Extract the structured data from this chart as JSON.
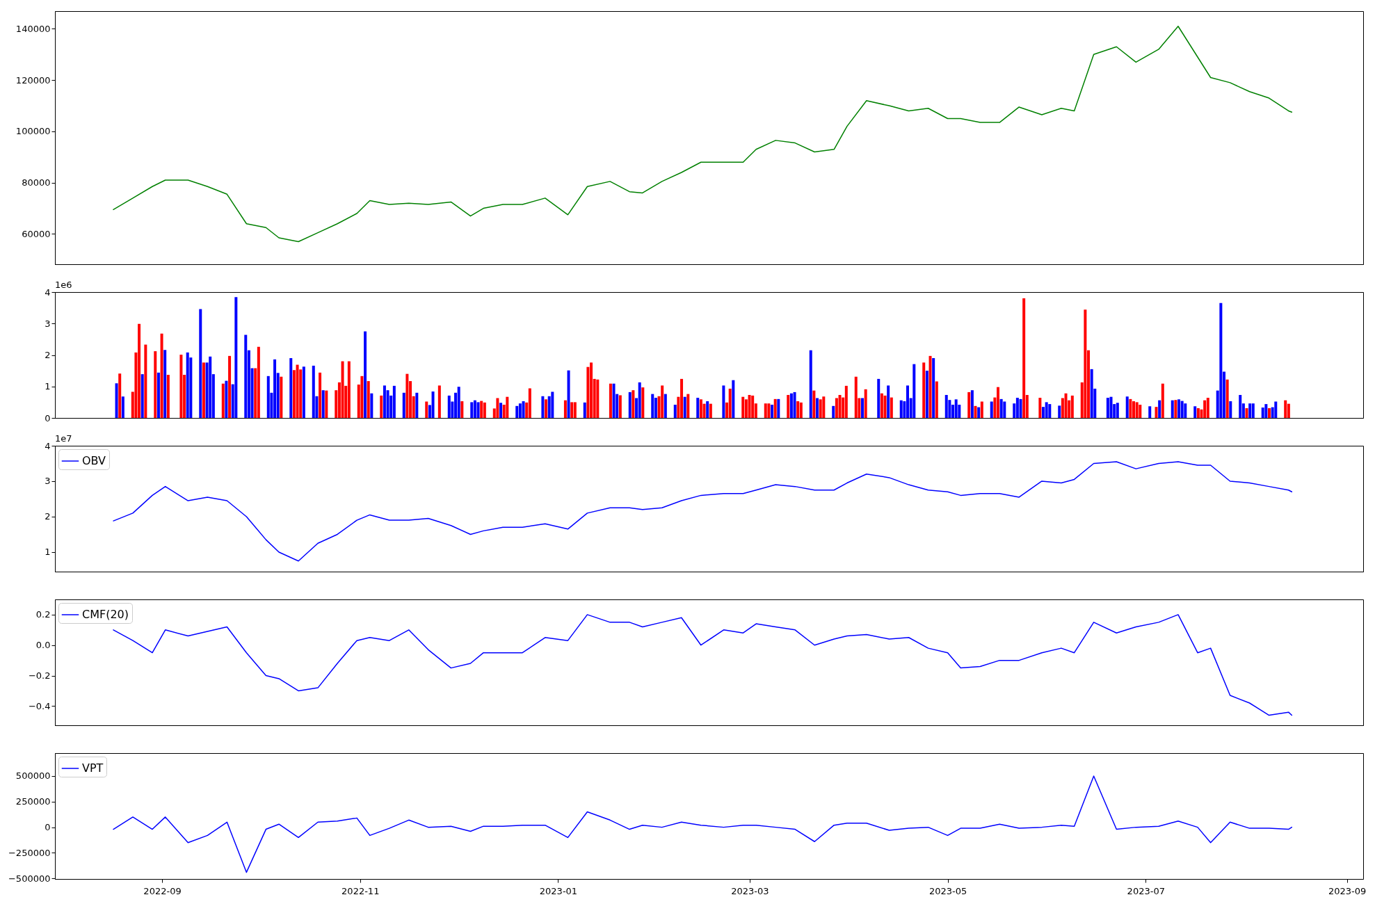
{
  "chart_data": [
    {
      "type": "line",
      "x": [
        "2022-08-17",
        "2022-08-23",
        "2022-08-29",
        "2022-09-02",
        "2022-09-09",
        "2022-09-15",
        "2022-09-21",
        "2022-09-27",
        "2022-10-03",
        "2022-10-07",
        "2022-10-13",
        "2022-10-19",
        "2022-10-25",
        "2022-10-31",
        "2022-11-04",
        "2022-11-10",
        "2022-11-16",
        "2022-11-22",
        "2022-11-29",
        "2022-12-05",
        "2022-12-09",
        "2022-12-15",
        "2022-12-21",
        "2022-12-28",
        "2023-01-04",
        "2023-01-10",
        "2023-01-17",
        "2023-01-23",
        "2023-01-27",
        "2023-02-02",
        "2023-02-08",
        "2023-02-14",
        "2023-02-21",
        "2023-02-27",
        "2023-03-03",
        "2023-03-09",
        "2023-03-15",
        "2023-03-21",
        "2023-03-27",
        "2023-03-31",
        "2023-04-06",
        "2023-04-13",
        "2023-04-19",
        "2023-04-25",
        "2023-05-01",
        "2023-05-05",
        "2023-05-11",
        "2023-05-17",
        "2023-05-23",
        "2023-05-30",
        "2023-06-05",
        "2023-06-09",
        "2023-06-15",
        "2023-06-22",
        "2023-06-28",
        "2023-07-05",
        "2023-07-11",
        "2023-07-17",
        "2023-07-21",
        "2023-07-27",
        "2023-08-02",
        "2023-08-08",
        "2023-08-14",
        "2023-08-15"
      ],
      "series": [
        {
          "color": "#008000",
          "values": [
            69500,
            74000,
            78500,
            81000,
            81000,
            78500,
            75500,
            64000,
            62500,
            58500,
            57000,
            60500,
            64000,
            68000,
            73000,
            71500,
            72000,
            71500,
            72500,
            67000,
            70000,
            71500,
            71500,
            74000,
            67500,
            78500,
            80500,
            76500,
            76000,
            80500,
            84000,
            88000,
            88000,
            88000,
            93000,
            96500,
            95500,
            92000,
            93000,
            102000,
            112000,
            110000,
            108000,
            109000,
            105000,
            105000,
            103500,
            103500,
            109500,
            106500,
            109000,
            108000,
            130000,
            133000,
            127000,
            132000,
            141000,
            129000,
            121000,
            119000,
            115500,
            113000,
            108000,
            107500
          ]
        }
      ],
      "xlim": [
        "2022-07-30",
        "2023-09-06"
      ],
      "ylim": [
        48200,
        146900
      ],
      "yticks": [
        60000,
        80000,
        100000,
        120000,
        140000
      ],
      "tick_labels": "y"
    },
    {
      "type": "bar",
      "x": [
        "2022-08-17",
        "2022-08-18",
        "2022-08-19",
        "2022-08-22",
        "2022-08-23",
        "2022-08-24",
        "2022-08-25",
        "2022-08-26",
        "2022-08-29",
        "2022-08-30",
        "2022-08-31",
        "2022-09-01",
        "2022-09-02",
        "2022-09-06",
        "2022-09-07",
        "2022-09-08",
        "2022-09-09",
        "2022-09-12",
        "2022-09-13",
        "2022-09-14",
        "2022-09-15",
        "2022-09-16",
        "2022-09-19",
        "2022-09-20",
        "2022-09-21",
        "2022-09-22",
        "2022-09-23",
        "2022-09-26",
        "2022-09-27",
        "2022-09-28",
        "2022-09-29",
        "2022-09-30",
        "2022-10-03",
        "2022-10-04",
        "2022-10-05",
        "2022-10-06",
        "2022-10-07",
        "2022-10-10",
        "2022-10-11",
        "2022-10-12",
        "2022-10-13",
        "2022-10-14",
        "2022-10-17",
        "2022-10-18",
        "2022-10-19",
        "2022-10-20",
        "2022-10-21",
        "2022-10-24",
        "2022-10-25",
        "2022-10-26",
        "2022-10-27",
        "2022-10-28",
        "2022-10-31",
        "2022-11-01",
        "2022-11-02",
        "2022-11-03",
        "2022-11-04",
        "2022-11-07",
        "2022-11-08",
        "2022-11-09",
        "2022-11-10",
        "2022-11-11",
        "2022-11-14",
        "2022-11-15",
        "2022-11-16",
        "2022-11-17",
        "2022-11-18",
        "2022-11-21",
        "2022-11-22",
        "2022-11-23",
        "2022-11-25",
        "2022-11-28",
        "2022-11-29",
        "2022-11-30",
        "2022-12-01",
        "2022-12-02",
        "2022-12-05",
        "2022-12-06",
        "2022-12-07",
        "2022-12-08",
        "2022-12-09",
        "2022-12-12",
        "2022-12-13",
        "2022-12-14",
        "2022-12-15",
        "2022-12-16",
        "2022-12-19",
        "2022-12-20",
        "2022-12-21",
        "2022-12-22",
        "2022-12-23",
        "2022-12-27",
        "2022-12-28",
        "2022-12-29",
        "2022-12-30",
        "2023-01-03",
        "2023-01-04",
        "2023-01-05",
        "2023-01-06",
        "2023-01-09",
        "2023-01-10",
        "2023-01-11",
        "2023-01-12",
        "2023-01-13",
        "2023-01-17",
        "2023-01-18",
        "2023-01-19",
        "2023-01-20",
        "2023-01-23",
        "2023-01-24",
        "2023-01-25",
        "2023-01-26",
        "2023-01-27",
        "2023-01-30",
        "2023-01-31",
        "2023-02-01",
        "2023-02-02",
        "2023-02-03",
        "2023-02-06",
        "2023-02-07",
        "2023-02-08",
        "2023-02-09",
        "2023-02-10",
        "2023-02-13",
        "2023-02-14",
        "2023-02-15",
        "2023-02-16",
        "2023-02-17",
        "2023-02-21",
        "2023-02-22",
        "2023-02-23",
        "2023-02-24",
        "2023-02-27",
        "2023-02-28",
        "2023-03-01",
        "2023-03-02",
        "2023-03-03",
        "2023-03-06",
        "2023-03-07",
        "2023-03-08",
        "2023-03-09",
        "2023-03-10",
        "2023-03-13",
        "2023-03-14",
        "2023-03-15",
        "2023-03-16",
        "2023-03-17",
        "2023-03-20",
        "2023-03-21",
        "2023-03-22",
        "2023-03-23",
        "2023-03-24",
        "2023-03-27",
        "2023-03-28",
        "2023-03-29",
        "2023-03-30",
        "2023-03-31",
        "2023-04-03",
        "2023-04-04",
        "2023-04-05",
        "2023-04-06",
        "2023-04-10",
        "2023-04-11",
        "2023-04-12",
        "2023-04-13",
        "2023-04-14",
        "2023-04-17",
        "2023-04-18",
        "2023-04-19",
        "2023-04-20",
        "2023-04-21",
        "2023-04-24",
        "2023-04-25",
        "2023-04-26",
        "2023-04-27",
        "2023-04-28",
        "2023-05-01",
        "2023-05-02",
        "2023-05-03",
        "2023-05-04",
        "2023-05-05",
        "2023-05-08",
        "2023-05-09",
        "2023-05-10",
        "2023-05-11",
        "2023-05-12",
        "2023-05-15",
        "2023-05-16",
        "2023-05-17",
        "2023-05-18",
        "2023-05-19",
        "2023-05-22",
        "2023-05-23",
        "2023-05-24",
        "2023-05-25",
        "2023-05-26",
        "2023-05-30",
        "2023-05-31",
        "2023-06-01",
        "2023-06-02",
        "2023-06-05",
        "2023-06-06",
        "2023-06-07",
        "2023-06-08",
        "2023-06-09",
        "2023-06-12",
        "2023-06-13",
        "2023-06-14",
        "2023-06-15",
        "2023-06-16",
        "2023-06-20",
        "2023-06-21",
        "2023-06-22",
        "2023-06-23",
        "2023-06-26",
        "2023-06-27",
        "2023-06-28",
        "2023-06-29",
        "2023-06-30",
        "2023-07-03",
        "2023-07-05",
        "2023-07-06",
        "2023-07-07",
        "2023-07-10",
        "2023-07-11",
        "2023-07-12",
        "2023-07-13",
        "2023-07-14",
        "2023-07-17",
        "2023-07-18",
        "2023-07-19",
        "2023-07-20",
        "2023-07-21",
        "2023-07-24",
        "2023-07-25",
        "2023-07-26",
        "2023-07-27",
        "2023-07-28",
        "2023-07-31",
        "2023-08-01",
        "2023-08-02",
        "2023-08-03",
        "2023-08-04",
        "2023-08-07",
        "2023-08-08",
        "2023-08-09",
        "2023-08-10",
        "2023-08-11",
        "2023-08-14",
        "2023-08-15"
      ],
      "values": [
        1.1,
        1.41,
        0.68,
        0.83,
        2.08,
        2.99,
        1.39,
        2.33,
        2.12,
        1.44,
        2.68,
        2.16,
        1.37,
        2.01,
        1.37,
        2.08,
        1.92,
        3.46,
        1.76,
        1.76,
        1.95,
        1.39,
        1.09,
        1.18,
        1.97,
        1.07,
        3.84,
        2.64,
        2.15,
        1.58,
        1.58,
        2.26,
        1.33,
        0.8,
        1.86,
        1.43,
        1.31,
        1.9,
        1.52,
        1.69,
        1.54,
        1.63,
        1.66,
        0.69,
        1.44,
        0.88,
        0.87,
        0.88,
        1.13,
        1.8,
        1.02,
        1.8,
        1.06,
        1.33,
        2.75,
        1.17,
        0.78,
        0.71,
        1.03,
        0.88,
        0.71,
        1.02,
        0.8,
        1.4,
        1.17,
        0.69,
        0.8,
        0.52,
        0.41,
        0.84,
        1.03,
        0.71,
        0.52,
        0.8,
        0.99,
        0.53,
        0.5,
        0.56,
        0.5,
        0.54,
        0.49,
        0.3,
        0.63,
        0.48,
        0.42,
        0.67,
        0.38,
        0.46,
        0.53,
        0.49,
        0.94,
        0.69,
        0.59,
        0.69,
        0.83,
        0.56,
        1.51,
        0.5,
        0.5,
        0.49,
        1.62,
        1.76,
        1.24,
        1.22,
        1.09,
        1.09,
        0.76,
        0.72,
        0.82,
        0.88,
        0.63,
        1.13,
        0.97,
        0.76,
        0.64,
        0.69,
        1.03,
        0.76,
        0.42,
        0.67,
        1.24,
        0.67,
        0.76,
        0.64,
        0.59,
        0.45,
        0.53,
        0.45,
        1.03,
        0.49,
        0.93,
        1.2,
        0.67,
        0.59,
        0.73,
        0.71,
        0.46,
        0.46,
        0.46,
        0.42,
        0.6,
        0.6,
        0.73,
        0.78,
        0.82,
        0.53,
        0.49,
        2.15,
        0.87,
        0.63,
        0.59,
        0.68,
        0.38,
        0.63,
        0.73,
        0.65,
        1.02,
        1.31,
        0.63,
        0.63,
        0.91,
        1.24,
        0.78,
        0.71,
        1.03,
        0.65,
        0.56,
        0.53,
        1.03,
        0.63,
        1.71,
        1.76,
        1.5,
        1.97,
        1.9,
        1.16,
        0.73,
        0.57,
        0.42,
        0.59,
        0.42,
        0.82,
        0.88,
        0.38,
        0.34,
        0.52,
        0.52,
        0.65,
        0.98,
        0.6,
        0.52,
        0.46,
        0.64,
        0.6,
        3.8,
        0.73,
        0.64,
        0.35,
        0.5,
        0.44,
        0.39,
        0.63,
        0.78,
        0.56,
        0.71,
        1.13,
        3.44,
        2.15,
        1.55,
        0.93,
        0.64,
        0.67,
        0.44,
        0.48,
        0.68,
        0.6,
        0.53,
        0.5,
        0.42,
        0.37,
        0.35,
        0.56,
        1.09,
        0.56,
        0.57,
        0.59,
        0.54,
        0.46,
        0.37,
        0.31,
        0.27,
        0.56,
        0.64,
        0.87,
        3.65,
        1.47,
        1.22,
        0.53,
        0.73,
        0.46,
        0.31,
        0.46,
        0.46,
        0.33,
        0.44,
        0.31,
        0.34,
        0.52,
        0.56,
        0.45
      ],
      "colors": [
        "#0000ff",
        "#ff0000",
        "#0000ff",
        "#ff0000",
        "#ff0000",
        "#ff0000",
        "#0000ff",
        "#ff0000",
        "#ff0000",
        "#0000ff",
        "#ff0000",
        "#0000ff",
        "#ff0000",
        "#ff0000",
        "#ff0000",
        "#0000ff",
        "#0000ff",
        "#0000ff",
        "#ff0000",
        "#0000ff",
        "#0000ff",
        "#0000ff",
        "#ff0000",
        "#0000ff",
        "#ff0000",
        "#0000ff",
        "#0000ff",
        "#0000ff",
        "#0000ff",
        "#0000ff",
        "#ff0000",
        "#ff0000",
        "#0000ff",
        "#0000ff",
        "#0000ff",
        "#0000ff",
        "#ff0000",
        "#0000ff",
        "#ff0000",
        "#ff0000",
        "#ff0000",
        "#0000ff",
        "#0000ff",
        "#0000ff",
        "#ff0000",
        "#0000ff",
        "#ff0000",
        "#ff0000",
        "#ff0000",
        "#ff0000",
        "#ff0000",
        "#ff0000",
        "#ff0000",
        "#ff0000",
        "#0000ff",
        "#ff0000",
        "#0000ff",
        "#ff0000",
        "#0000ff",
        "#0000ff",
        "#0000ff",
        "#0000ff",
        "#0000ff",
        "#ff0000",
        "#ff0000",
        "#ff0000",
        "#0000ff",
        "#ff0000",
        "#0000ff",
        "#0000ff",
        "#ff0000",
        "#0000ff",
        "#0000ff",
        "#0000ff",
        "#0000ff",
        "#ff0000",
        "#0000ff",
        "#0000ff",
        "#0000ff",
        "#ff0000",
        "#ff0000",
        "#ff0000",
        "#ff0000",
        "#0000ff",
        "#ff0000",
        "#ff0000",
        "#0000ff",
        "#0000ff",
        "#0000ff",
        "#ff0000",
        "#ff0000",
        "#0000ff",
        "#ff0000",
        "#0000ff",
        "#0000ff",
        "#ff0000",
        "#0000ff",
        "#ff0000",
        "#ff0000",
        "#0000ff",
        "#ff0000",
        "#ff0000",
        "#ff0000",
        "#ff0000",
        "#ff0000",
        "#0000ff",
        "#0000ff",
        "#ff0000",
        "#0000ff",
        "#ff0000",
        "#0000ff",
        "#0000ff",
        "#ff0000",
        "#0000ff",
        "#0000ff",
        "#ff0000",
        "#ff0000",
        "#0000ff",
        "#0000ff",
        "#ff0000",
        "#ff0000",
        "#0000ff",
        "#ff0000",
        "#0000ff",
        "#ff0000",
        "#ff0000",
        "#0000ff",
        "#ff0000",
        "#0000ff",
        "#ff0000",
        "#ff0000",
        "#0000ff",
        "#ff0000",
        "#ff0000",
        "#ff0000",
        "#ff0000",
        "#ff0000",
        "#ff0000",
        "#ff0000",
        "#0000ff",
        "#ff0000",
        "#0000ff",
        "#ff0000",
        "#0000ff",
        "#0000ff",
        "#ff0000",
        "#ff0000",
        "#0000ff",
        "#ff0000",
        "#0000ff",
        "#ff0000",
        "#ff0000",
        "#0000ff",
        "#ff0000",
        "#ff0000",
        "#ff0000",
        "#ff0000",
        "#ff0000",
        "#ff0000",
        "#0000ff",
        "#ff0000",
        "#0000ff",
        "#ff0000",
        "#ff0000",
        "#0000ff",
        "#ff0000",
        "#0000ff",
        "#0000ff",
        "#0000ff",
        "#0000ff",
        "#0000ff",
        "#ff0000",
        "#0000ff",
        "#ff0000",
        "#0000ff",
        "#ff0000",
        "#0000ff",
        "#0000ff",
        "#0000ff",
        "#0000ff",
        "#0000ff",
        "#ff0000",
        "#0000ff",
        "#ff0000",
        "#0000ff",
        "#ff0000",
        "#0000ff",
        "#ff0000",
        "#ff0000",
        "#0000ff",
        "#0000ff",
        "#0000ff",
        "#0000ff",
        "#0000ff",
        "#ff0000",
        "#ff0000",
        "#ff0000",
        "#0000ff",
        "#0000ff",
        "#0000ff",
        "#0000ff",
        "#ff0000",
        "#ff0000",
        "#ff0000",
        "#ff0000",
        "#ff0000",
        "#ff0000",
        "#ff0000",
        "#0000ff",
        "#0000ff",
        "#0000ff",
        "#0000ff",
        "#0000ff",
        "#0000ff",
        "#0000ff",
        "#ff0000",
        "#ff0000",
        "#ff0000",
        "#ff0000",
        "#0000ff",
        "#ff0000",
        "#0000ff",
        "#ff0000",
        "#0000ff",
        "#ff0000",
        "#0000ff",
        "#0000ff",
        "#0000ff",
        "#0000ff",
        "#ff0000",
        "#ff0000",
        "#ff0000",
        "#ff0000",
        "#0000ff",
        "#0000ff",
        "#0000ff",
        "#ff0000",
        "#0000ff",
        "#0000ff",
        "#0000ff",
        "#ff0000",
        "#0000ff",
        "#0000ff",
        "#0000ff",
        "#0000ff",
        "#ff0000",
        "#0000ff",
        "#0000ff",
        "#ff0000",
        "#ff0000"
      ],
      "xlim": [
        "2022-07-30",
        "2023-09-06"
      ],
      "ylim": [
        0,
        4
      ],
      "yticks": [
        0,
        1,
        2,
        3,
        4
      ],
      "annotations": [
        "1e6"
      ],
      "tick_labels": "y"
    },
    {
      "type": "line",
      "x": [
        "2022-08-17",
        "2022-08-23",
        "2022-08-29",
        "2022-09-02",
        "2022-09-09",
        "2022-09-15",
        "2022-09-21",
        "2022-09-27",
        "2022-10-03",
        "2022-10-07",
        "2022-10-13",
        "2022-10-19",
        "2022-10-25",
        "2022-10-31",
        "2022-11-04",
        "2022-11-10",
        "2022-11-16",
        "2022-11-22",
        "2022-11-29",
        "2022-12-05",
        "2022-12-09",
        "2022-12-15",
        "2022-12-21",
        "2022-12-28",
        "2023-01-04",
        "2023-01-10",
        "2023-01-17",
        "2023-01-23",
        "2023-01-27",
        "2023-02-02",
        "2023-02-08",
        "2023-02-14",
        "2023-02-21",
        "2023-02-27",
        "2023-03-03",
        "2023-03-09",
        "2023-03-15",
        "2023-03-21",
        "2023-03-27",
        "2023-03-31",
        "2023-04-06",
        "2023-04-13",
        "2023-04-19",
        "2023-04-25",
        "2023-05-01",
        "2023-05-05",
        "2023-05-11",
        "2023-05-17",
        "2023-05-23",
        "2023-05-30",
        "2023-06-05",
        "2023-06-09",
        "2023-06-15",
        "2023-06-22",
        "2023-06-28",
        "2023-07-05",
        "2023-07-11",
        "2023-07-17",
        "2023-07-21",
        "2023-07-27",
        "2023-08-02",
        "2023-08-08",
        "2023-08-14",
        "2023-08-15"
      ],
      "series": [
        {
          "name": "OBV",
          "color": "#0000ff",
          "values": [
            1.88,
            2.1,
            2.6,
            2.85,
            2.45,
            2.55,
            2.45,
            2.0,
            1.35,
            1.0,
            0.75,
            1.25,
            1.5,
            1.9,
            2.05,
            1.9,
            1.9,
            1.95,
            1.75,
            1.5,
            1.6,
            1.7,
            1.7,
            1.8,
            1.65,
            2.1,
            2.25,
            2.25,
            2.2,
            2.25,
            2.45,
            2.6,
            2.65,
            2.65,
            2.75,
            2.9,
            2.85,
            2.75,
            2.75,
            2.95,
            3.2,
            3.1,
            2.9,
            2.75,
            2.7,
            2.6,
            2.65,
            2.65,
            2.55,
            3.0,
            2.95,
            3.05,
            3.5,
            3.55,
            3.35,
            3.5,
            3.55,
            3.45,
            3.45,
            3.0,
            2.95,
            2.85,
            2.75,
            2.7
          ]
        }
      ],
      "xlim": [
        "2022-07-30",
        "2023-09-06"
      ],
      "ylim": [
        0.45,
        4
      ],
      "yticks": [
        1,
        2,
        3,
        4
      ],
      "annotations": [
        "1e7"
      ],
      "legend": "top left",
      "tick_labels": "y"
    },
    {
      "type": "line",
      "x": [
        "2022-08-17",
        "2022-08-23",
        "2022-08-29",
        "2022-09-02",
        "2022-09-09",
        "2022-09-15",
        "2022-09-21",
        "2022-09-27",
        "2022-10-03",
        "2022-10-07",
        "2022-10-13",
        "2022-10-19",
        "2022-10-25",
        "2022-10-31",
        "2022-11-04",
        "2022-11-10",
        "2022-11-16",
        "2022-11-22",
        "2022-11-29",
        "2022-12-05",
        "2022-12-09",
        "2022-12-15",
        "2022-12-21",
        "2022-12-28",
        "2023-01-04",
        "2023-01-10",
        "2023-01-17",
        "2023-01-23",
        "2023-01-27",
        "2023-02-02",
        "2023-02-08",
        "2023-02-14",
        "2023-02-21",
        "2023-02-27",
        "2023-03-03",
        "2023-03-09",
        "2023-03-15",
        "2023-03-21",
        "2023-03-27",
        "2023-03-31",
        "2023-04-06",
        "2023-04-13",
        "2023-04-19",
        "2023-04-25",
        "2023-05-01",
        "2023-05-05",
        "2023-05-11",
        "2023-05-17",
        "2023-05-23",
        "2023-05-30",
        "2023-06-05",
        "2023-06-09",
        "2023-06-15",
        "2023-06-22",
        "2023-06-28",
        "2023-07-05",
        "2023-07-11",
        "2023-07-17",
        "2023-07-21",
        "2023-07-27",
        "2023-08-02",
        "2023-08-08",
        "2023-08-14",
        "2023-08-15"
      ],
      "series": [
        {
          "name": "CMF(20)",
          "color": "#0000ff",
          "values": [
            0.1,
            0.03,
            -0.05,
            0.1,
            0.06,
            0.09,
            0.12,
            -0.05,
            -0.2,
            -0.22,
            -0.3,
            -0.28,
            -0.12,
            0.03,
            0.05,
            0.03,
            0.1,
            -0.03,
            -0.15,
            -0.12,
            -0.05,
            -0.05,
            -0.05,
            0.05,
            0.03,
            0.2,
            0.15,
            0.15,
            0.12,
            0.15,
            0.18,
            0.0,
            0.1,
            0.08,
            0.14,
            0.12,
            0.1,
            0.0,
            0.04,
            0.06,
            0.07,
            0.04,
            0.05,
            -0.02,
            -0.05,
            -0.15,
            -0.14,
            -0.1,
            -0.1,
            -0.05,
            -0.02,
            -0.05,
            0.15,
            0.08,
            0.12,
            0.15,
            0.2,
            -0.05,
            -0.02,
            -0.33,
            -0.38,
            -0.46,
            -0.44,
            -0.46
          ]
        }
      ],
      "xlim": [
        "2022-07-30",
        "2023-09-06"
      ],
      "ylim": [
        -0.526,
        0.3
      ],
      "yticks": [
        {
          "value": -0.4,
          "label": "−0.4"
        },
        {
          "value": -0.2,
          "label": "−0.2"
        },
        {
          "value": 0,
          "label": "0.0"
        },
        0.2
      ],
      "legend": "top left",
      "tick_labels": "y"
    },
    {
      "type": "line",
      "x": [
        "2022-08-17",
        "2022-08-23",
        "2022-08-29",
        "2022-09-02",
        "2022-09-09",
        "2022-09-15",
        "2022-09-21",
        "2022-09-27",
        "2022-10-03",
        "2022-10-07",
        "2022-10-13",
        "2022-10-19",
        "2022-10-25",
        "2022-10-31",
        "2022-11-04",
        "2022-11-10",
        "2022-11-16",
        "2022-11-22",
        "2022-11-29",
        "2022-12-05",
        "2022-12-09",
        "2022-12-15",
        "2022-12-21",
        "2022-12-28",
        "2023-01-04",
        "2023-01-10",
        "2023-01-17",
        "2023-01-23",
        "2023-01-27",
        "2023-02-02",
        "2023-02-08",
        "2023-02-14",
        "2023-02-21",
        "2023-02-27",
        "2023-03-03",
        "2023-03-09",
        "2023-03-15",
        "2023-03-21",
        "2023-03-27",
        "2023-03-31",
        "2023-04-06",
        "2023-04-13",
        "2023-04-19",
        "2023-04-25",
        "2023-05-01",
        "2023-05-05",
        "2023-05-11",
        "2023-05-17",
        "2023-05-23",
        "2023-05-30",
        "2023-06-05",
        "2023-06-09",
        "2023-06-15",
        "2023-06-22",
        "2023-06-28",
        "2023-07-05",
        "2023-07-11",
        "2023-07-17",
        "2023-07-21",
        "2023-07-27",
        "2023-08-02",
        "2023-08-08",
        "2023-08-14",
        "2023-08-15"
      ],
      "series": [
        {
          "name": "VPT",
          "color": "#0000ff",
          "values": [
            -20000,
            100000,
            -20000,
            100000,
            -150000,
            -80000,
            50000,
            -440000,
            -20000,
            30000,
            -100000,
            50000,
            60000,
            90000,
            -80000,
            -10000,
            70000,
            0,
            10000,
            -40000,
            10000,
            10000,
            20000,
            20000,
            -100000,
            150000,
            70000,
            -20000,
            20000,
            0,
            50000,
            20000,
            0,
            20000,
            20000,
            0,
            -20000,
            -140000,
            20000,
            40000,
            40000,
            -30000,
            -10000,
            0,
            -80000,
            -10000,
            -10000,
            30000,
            -10000,
            0,
            20000,
            10000,
            500000,
            -20000,
            0,
            10000,
            60000,
            0,
            -150000,
            50000,
            -10000,
            -10000,
            -20000,
            0
          ]
        }
      ],
      "xlim": [
        "2022-07-30",
        "2023-09-06"
      ],
      "xticks": [
        {
          "value": "2022-09-01",
          "label": "2022-09"
        },
        {
          "value": "2022-11-01",
          "label": "2022-11"
        },
        {
          "value": "2023-01-01",
          "label": "2023-01"
        },
        {
          "value": "2023-03-01",
          "label": "2023-03"
        },
        {
          "value": "2023-05-01",
          "label": "2023-05"
        },
        {
          "value": "2023-07-01",
          "label": "2023-07"
        },
        {
          "value": "2023-09-01",
          "label": "2023-09"
        }
      ],
      "ylim": [
        -505000,
        724000
      ],
      "yticks": [
        {
          "value": -500000,
          "label": "−500000"
        },
        {
          "value": -250000,
          "label": "−250000"
        },
        0,
        250000,
        500000
      ],
      "legend": "top left"
    }
  ]
}
